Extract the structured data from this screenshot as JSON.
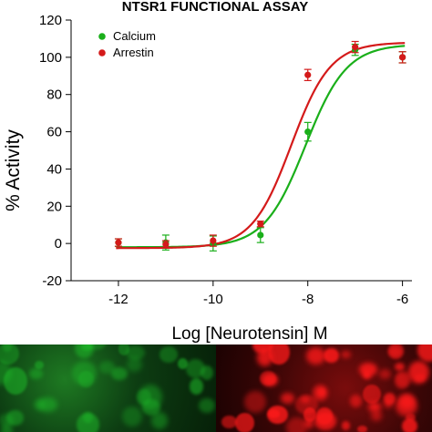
{
  "chart_data": {
    "type": "line",
    "title": "NTSR1 FUNCTIONAL ASSAY",
    "xlabel": "Log [Neurotensin] M",
    "ylabel": "% Activity",
    "xlim": [
      -13,
      -5.8
    ],
    "ylim": [
      -20,
      120
    ],
    "xticks": [
      -12,
      -10,
      -8,
      -6
    ],
    "yticks": [
      -20,
      0,
      20,
      40,
      60,
      80,
      100,
      120
    ],
    "legend_position": "top-left",
    "series": [
      {
        "name": "Calcium",
        "color": "#1aaf1a",
        "marker": "circle",
        "points": [
          {
            "x": -12,
            "y": 0.5,
            "err": 2
          },
          {
            "x": -11,
            "y": 0.5,
            "err": 4
          },
          {
            "x": -10,
            "y": 0,
            "err": 4
          },
          {
            "x": -9,
            "y": 4.5,
            "err": 4
          },
          {
            "x": -8,
            "y": 60,
            "err": 5
          },
          {
            "x": -7,
            "y": 104,
            "err": 3
          },
          {
            "x": -6,
            "y": 100,
            "err": 3
          }
        ],
        "fit": {
          "bottom": -2,
          "top": 107,
          "logEC50": -8.05,
          "hill": 1.0
        }
      },
      {
        "name": "Arrestin",
        "color": "#d41a1a",
        "marker": "circle",
        "points": [
          {
            "x": -12,
            "y": 0.5,
            "err": 2
          },
          {
            "x": -11,
            "y": -0.5,
            "err": 2
          },
          {
            "x": -10,
            "y": 1.5,
            "err": 3
          },
          {
            "x": -9,
            "y": 10.5,
            "err": 1.5
          },
          {
            "x": -8,
            "y": 90.5,
            "err": 3
          },
          {
            "x": -7,
            "y": 105.5,
            "err": 3
          },
          {
            "x": -6,
            "y": 100,
            "err": 3
          }
        ],
        "fit": {
          "bottom": -2.5,
          "top": 108,
          "logEC50": -8.35,
          "hill": 1.05
        }
      }
    ]
  },
  "micrographs": {
    "left_color": "#1fbf2a",
    "right_color": "#ff1a1a"
  }
}
